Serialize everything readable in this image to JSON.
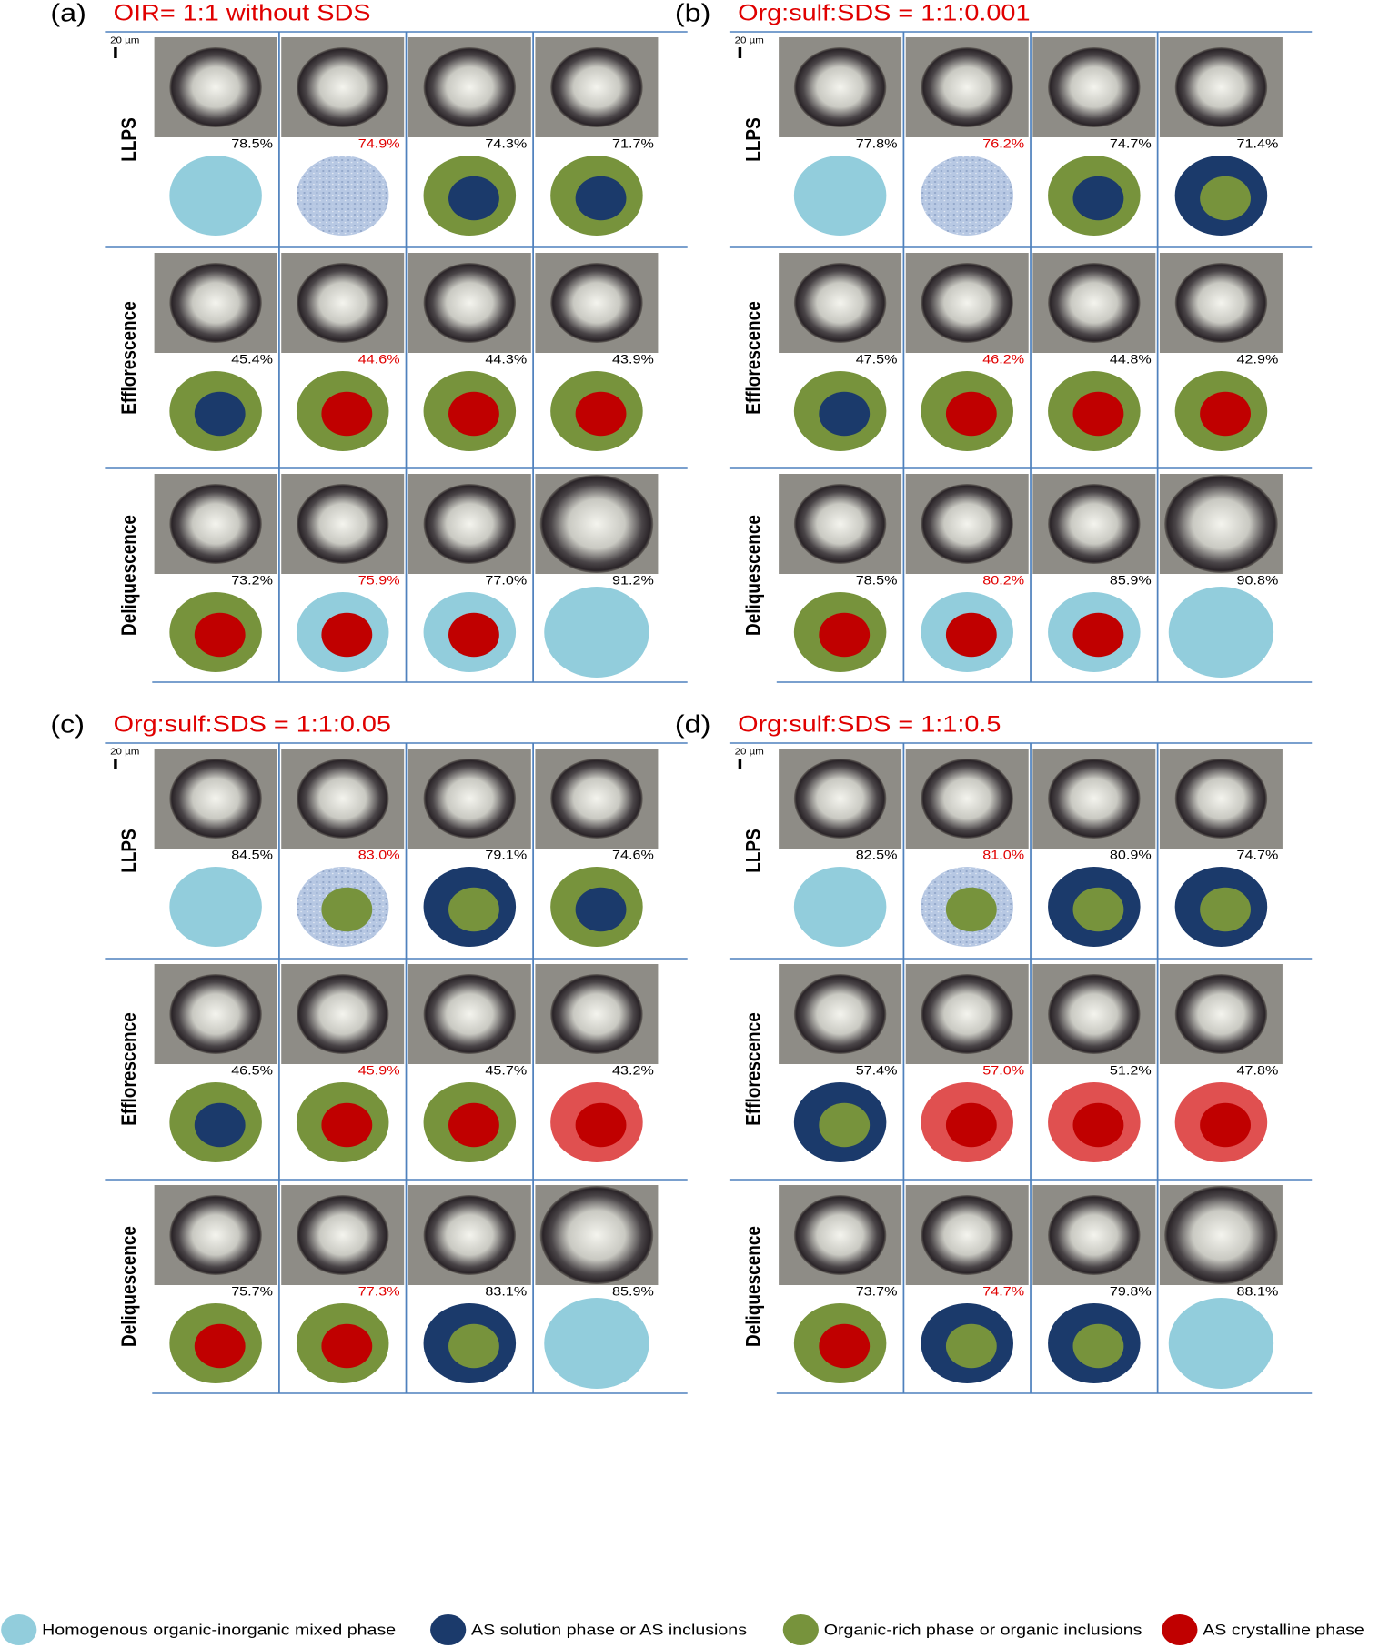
{
  "panels": [
    {
      "letter": "(a)",
      "title": "OIR= 1:1 without SDS",
      "scale": "20 µm",
      "rows": [
        {
          "label": "LLPS",
          "rh": [
            "78.5%",
            "74.9%",
            "74.3%",
            "71.7%"
          ]
        },
        {
          "label": "Efflorescence",
          "rh": [
            "45.4%",
            "44.6%",
            "44.3%",
            "43.9%"
          ]
        },
        {
          "label": "Deliquescence",
          "rh": [
            "73.2%",
            "75.9%",
            "77.0%",
            "91.2%"
          ]
        }
      ]
    },
    {
      "letter": "(b)",
      "title": "Org:sulf:SDS = 1:1:0.001",
      "scale": "20 µm",
      "rows": [
        {
          "label": "LLPS",
          "rh": [
            "77.8%",
            "76.2%",
            "74.7%",
            "71.4%"
          ]
        },
        {
          "label": "Efflorescence",
          "rh": [
            "47.5%",
            "46.2%",
            "44.8%",
            "42.9%"
          ]
        },
        {
          "label": "Deliquescence",
          "rh": [
            "78.5%",
            "80.2%",
            "85.9%",
            "90.8%"
          ]
        }
      ]
    },
    {
      "letter": "(c)",
      "title": "Org:sulf:SDS = 1:1:0.05",
      "scale": "20 µm",
      "rows": [
        {
          "label": "LLPS",
          "rh": [
            "84.5%",
            "83.0%",
            "79.1%",
            "74.6%"
          ]
        },
        {
          "label": "Efflorescence",
          "rh": [
            "46.5%",
            "45.9%",
            "45.7%",
            "43.2%"
          ]
        },
        {
          "label": "Deliquescence",
          "rh": [
            "75.7%",
            "77.3%",
            "83.1%",
            "85.9%"
          ]
        }
      ]
    },
    {
      "letter": "(d)",
      "title": "Org:sulf:SDS = 1:1:0.5",
      "scale": "20 µm",
      "rows": [
        {
          "label": "LLPS",
          "rh": [
            "82.5%",
            "81.0%",
            "80.9%",
            "74.7%"
          ]
        },
        {
          "label": "Efflorescence",
          "rh": [
            "57.4%",
            "57.0%",
            "51.2%",
            "47.8%"
          ]
        },
        {
          "label": "Deliquescence",
          "rh": [
            "73.7%",
            "74.7%",
            "79.8%",
            "88.1%"
          ]
        }
      ]
    }
  ],
  "legend": [
    "Homogenous organic-inorganic mixed phase",
    "AS solution phase or AS inclusions",
    "Organic-rich phase or organic inclusions",
    "AS crystalline phase"
  ]
}
